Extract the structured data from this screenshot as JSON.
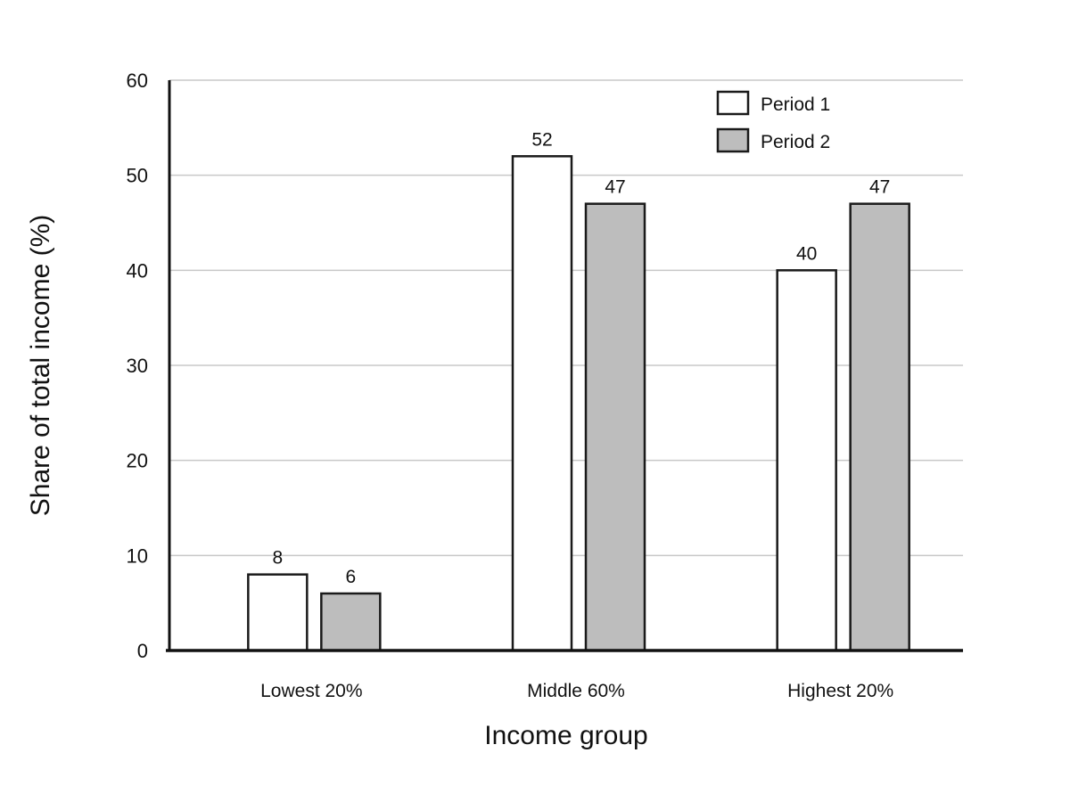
{
  "chart_data": {
    "type": "bar",
    "categories": [
      "Lowest 20%",
      "Middle 60%",
      "Highest 20%"
    ],
    "series": [
      {
        "name": "Period 1",
        "values": [
          8,
          52,
          40
        ],
        "color": "#ffffff"
      },
      {
        "name": "Period 2",
        "values": [
          6,
          47,
          47
        ],
        "color": "#bdbdbd"
      }
    ],
    "xlabel": "Income group",
    "ylabel": "Share of total income (%)",
    "ylim": [
      0,
      60
    ],
    "yticks": [
      0,
      10,
      20,
      30,
      40,
      50,
      60
    ],
    "grid": true,
    "legend_position": "top-right",
    "data_labels": true
  }
}
